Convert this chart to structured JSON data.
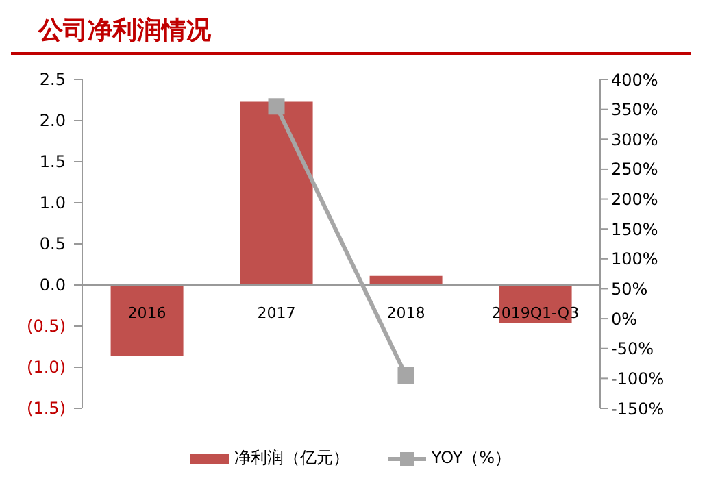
{
  "chart_data": {
    "type": "bar",
    "title": "公司净利润情况",
    "categories": [
      "2016",
      "2017",
      "2018",
      "2019Q1-Q3"
    ],
    "series": [
      {
        "name": "净利润（亿元）",
        "color": "#c0504d",
        "values": [
          -0.86,
          2.23,
          0.11,
          -0.46
        ]
      },
      {
        "name": "YOY（%）",
        "type": "line",
        "axis": "y2",
        "color": "#a6a6a6",
        "values": [
          null,
          355,
          -95,
          null
        ]
      }
    ],
    "ylim": [
      -1.5,
      2.5
    ],
    "yticks": [
      {
        "value": -1.5,
        "label": "(1.5)"
      },
      {
        "value": -1.0,
        "label": "(1.0)"
      },
      {
        "value": -0.5,
        "label": "(0.5)"
      },
      {
        "value": 0,
        "label": "0.0"
      },
      {
        "value": 0.5,
        "label": "0.5"
      },
      {
        "value": 1.0,
        "label": "1.0"
      },
      {
        "value": 1.5,
        "label": "1.5"
      },
      {
        "value": 2.0,
        "label": "2.0"
      },
      {
        "value": 2.5,
        "label": "2.5"
      }
    ],
    "y2lim": [
      -150,
      400
    ],
    "y2ticks": [
      {
        "value": -150,
        "label": "-150%"
      },
      {
        "value": -100,
        "label": "-100%"
      },
      {
        "value": -50,
        "label": "-50%"
      },
      {
        "value": 0,
        "label": "0%"
      },
      {
        "value": 50,
        "label": "50%"
      },
      {
        "value": 100,
        "label": "100%"
      },
      {
        "value": 150,
        "label": "150%"
      },
      {
        "value": 200,
        "label": "200%"
      },
      {
        "value": 250,
        "label": "250%"
      },
      {
        "value": 300,
        "label": "300%"
      },
      {
        "value": 350,
        "label": "350%"
      },
      {
        "value": 400,
        "label": "400%"
      }
    ],
    "grid": false,
    "legend": "bottom",
    "marker": "square",
    "line_style": "solid"
  }
}
